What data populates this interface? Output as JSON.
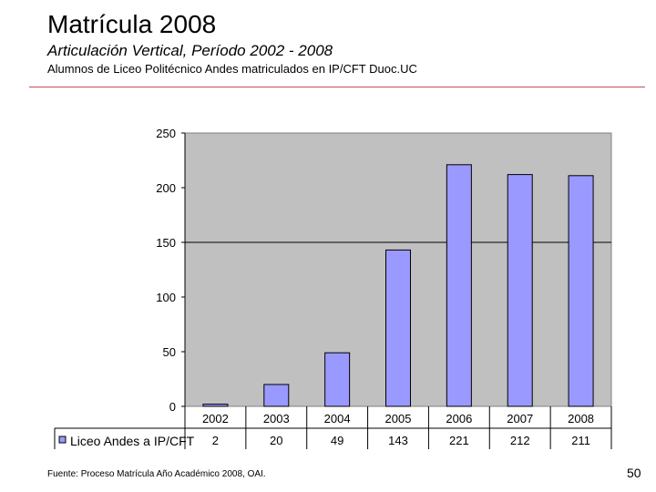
{
  "slide": {
    "title": "Matrícula 2008",
    "subtitle": "Articulación Vertical, Período 2002 - 2008",
    "description": "Alumnos de Liceo Politécnico Andes matriculados en IP/CFT Duoc.UC",
    "source": "Fuente: Proceso Matrícula Año Académico 2008, OAI.",
    "page_number": "50"
  },
  "chart_data": {
    "type": "bar",
    "categories": [
      "2002",
      "2003",
      "2004",
      "2005",
      "2006",
      "2007",
      "2008"
    ],
    "series": [
      {
        "name": "Liceo Andes a IP/CFT",
        "values": [
          2,
          20,
          49,
          143,
          221,
          212,
          211
        ]
      }
    ],
    "ylim": [
      0,
      250
    ],
    "yticks": [
      0,
      50,
      100,
      150,
      200,
      250
    ],
    "grid_lines": [
      150
    ],
    "data_table": true,
    "colors": {
      "bar_fill": "#9999ff",
      "bar_stroke": "#000000",
      "plot_bg": "#c0c0c0"
    }
  }
}
